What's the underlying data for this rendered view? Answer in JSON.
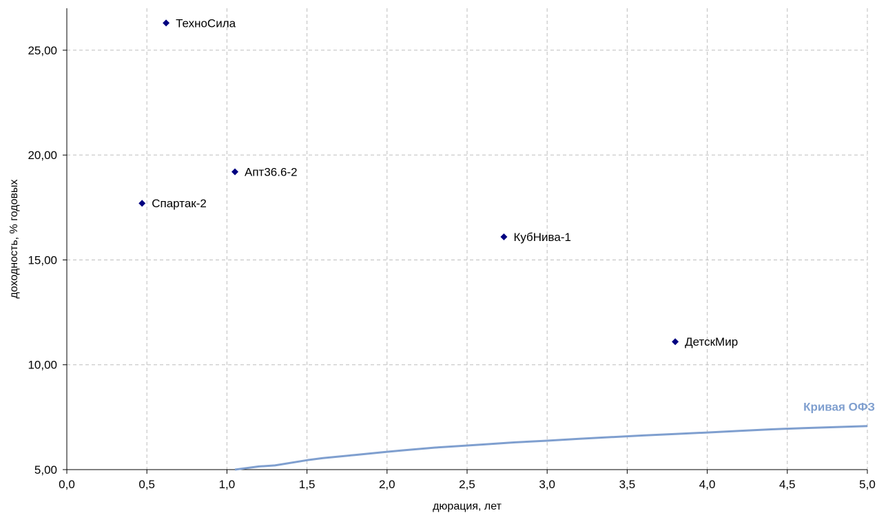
{
  "chart_data": {
    "type": "scatter",
    "xlabel": "дюрация, лет",
    "ylabel": "доходность, % годовых",
    "xlim": [
      0,
      5
    ],
    "ylim": [
      5,
      27
    ],
    "grid": true,
    "x_ticks": [
      "0,0",
      "0,5",
      "1,0",
      "1,5",
      "2,0",
      "2,5",
      "3,0",
      "3,5",
      "4,0",
      "4,5",
      "5,0"
    ],
    "y_ticks": [
      "5,00",
      "10,00",
      "15,00",
      "20,00",
      "25,00"
    ],
    "x_tick_values": [
      0,
      0.5,
      1,
      1.5,
      2,
      2.5,
      3,
      3.5,
      4,
      4.5,
      5
    ],
    "y_tick_values": [
      5,
      10,
      15,
      20,
      25
    ],
    "points": [
      {
        "label": "ТехноСила",
        "x": 0.62,
        "y": 26.3
      },
      {
        "label": "Апт36.6-2",
        "x": 1.05,
        "y": 19.2
      },
      {
        "label": "Спартак-2",
        "x": 0.47,
        "y": 17.7
      },
      {
        "label": "КубНива-1",
        "x": 2.73,
        "y": 16.1
      },
      {
        "label": "ДетскМир",
        "x": 3.8,
        "y": 11.1
      }
    ],
    "point_color": "#000080",
    "curve": {
      "name": "Кривая ОФЗ",
      "color": "#7f9fcf",
      "x": [
        1.05,
        1.2,
        1.3,
        1.5,
        1.6,
        1.8,
        2.0,
        2.1,
        2.3,
        2.4,
        2.6,
        2.8,
        3.0,
        3.2,
        3.4,
        3.6,
        3.8,
        4.0,
        4.2,
        4.4,
        4.6,
        4.8,
        5.0
      ],
      "y": [
        5.0,
        5.15,
        5.2,
        5.45,
        5.55,
        5.7,
        5.85,
        5.92,
        6.05,
        6.1,
        6.2,
        6.3,
        6.38,
        6.47,
        6.55,
        6.63,
        6.7,
        6.77,
        6.85,
        6.92,
        6.98,
        7.03,
        7.08
      ]
    }
  }
}
